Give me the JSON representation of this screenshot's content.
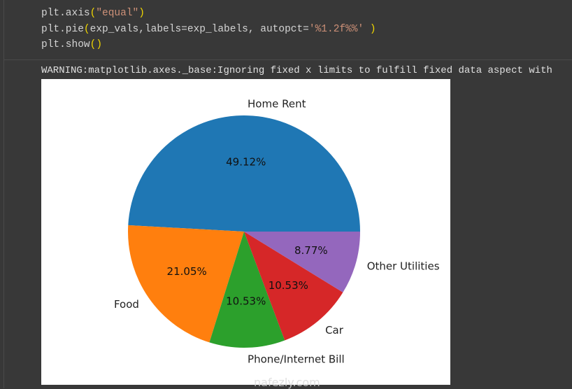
{
  "code": {
    "line1": {
      "a": "plt.axis",
      "p1": "(",
      "s": "\"equal\"",
      "p2": ")"
    },
    "line2": {
      "a": "plt.pie",
      "p1": "(",
      "b": "exp_vals,labels=exp_labels, autopct=",
      "s": "'%1.2f%%'",
      "c": " ",
      "p2": ")"
    },
    "line3": {
      "a": "plt.show",
      "p1": "(",
      "p2": ")"
    }
  },
  "output": {
    "warning": "WARNING:matplotlib.axes._base:Ignoring fixed x limits to fulfill fixed data aspect with"
  },
  "watermark": "nafezly.com",
  "chart_data": {
    "type": "pie",
    "categories": [
      "Home Rent",
      "Food",
      "Phone/Internet Bill",
      "Car",
      "Other Utilities"
    ],
    "values": [
      56,
      24,
      12,
      12,
      10
    ],
    "percent_labels": [
      "49.12%",
      "21.05%",
      "10.53%",
      "10.53%",
      "8.77%"
    ],
    "colors": [
      "#1f77b4",
      "#ff7f0e",
      "#2ca02c",
      "#d62728",
      "#9467bd"
    ],
    "start_angle": 0,
    "direction": "counterclockwise"
  }
}
